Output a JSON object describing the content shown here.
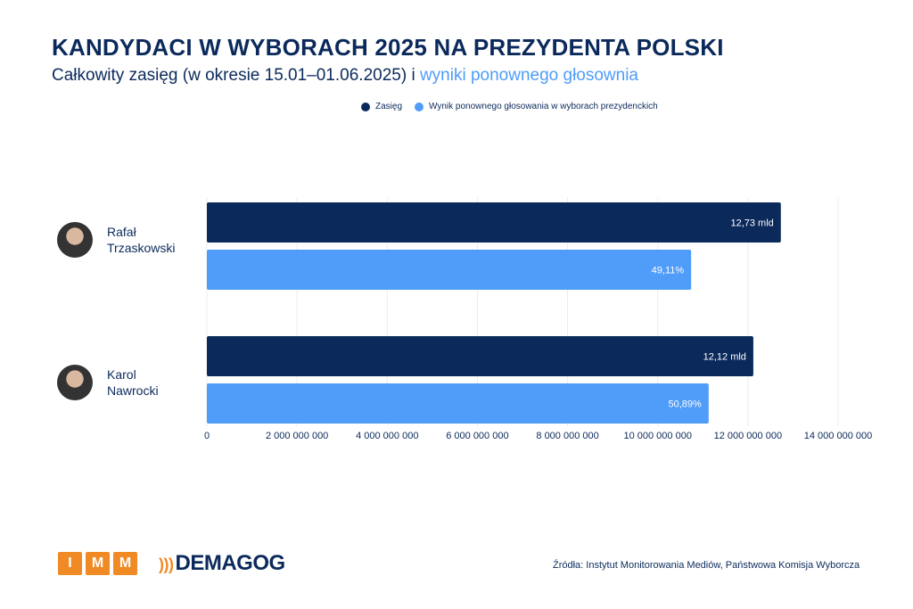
{
  "chart_data": {
    "type": "bar",
    "orientation": "horizontal",
    "title": "KANDYDACI W WYBORACH 2025 NA PREZYDENTA POLSKI",
    "subtitle": "Całkowity zasięg (w okresie 15.01–01.06.2025) i",
    "subtitle_highlight": "wyniki ponownego głosownia",
    "categories": [
      "Rafał Trzaskowski",
      "Karol Nawrocki"
    ],
    "series": [
      {
        "name": "Zasięg",
        "color": "#0b2a5b",
        "values": [
          12730000000,
          12120000000
        ],
        "labels": [
          "12,73 mld",
          "12,12 mld"
        ]
      },
      {
        "name": "Wynik ponownego głosowania w wyborach prezydenckich",
        "color": "#4f9cf9",
        "values": [
          49.11,
          50.89
        ],
        "labels": [
          "49,11%",
          "50,89%"
        ]
      }
    ],
    "xlim": [
      0,
      14000000000
    ],
    "xticks": [
      "0",
      "2 000 000 000",
      "4 000 000 000",
      "6 000 000 000",
      "8 000 000 000",
      "10 000 000 000",
      "12 000 000 000",
      "14 000 000 000"
    ],
    "grid": true,
    "legend": "top-right"
  },
  "candidates": [
    {
      "first": "Rafał",
      "last": "Trzaskowski"
    },
    {
      "first": "Karol",
      "last": "Nawrocki"
    }
  ],
  "footer": {
    "logo1": [
      "I",
      "M",
      "M"
    ],
    "logo2": "DEMAGOG",
    "source": "Źródła: Instytut Monitorowania Mediów, Państwowa Komisja Wyborcza"
  }
}
